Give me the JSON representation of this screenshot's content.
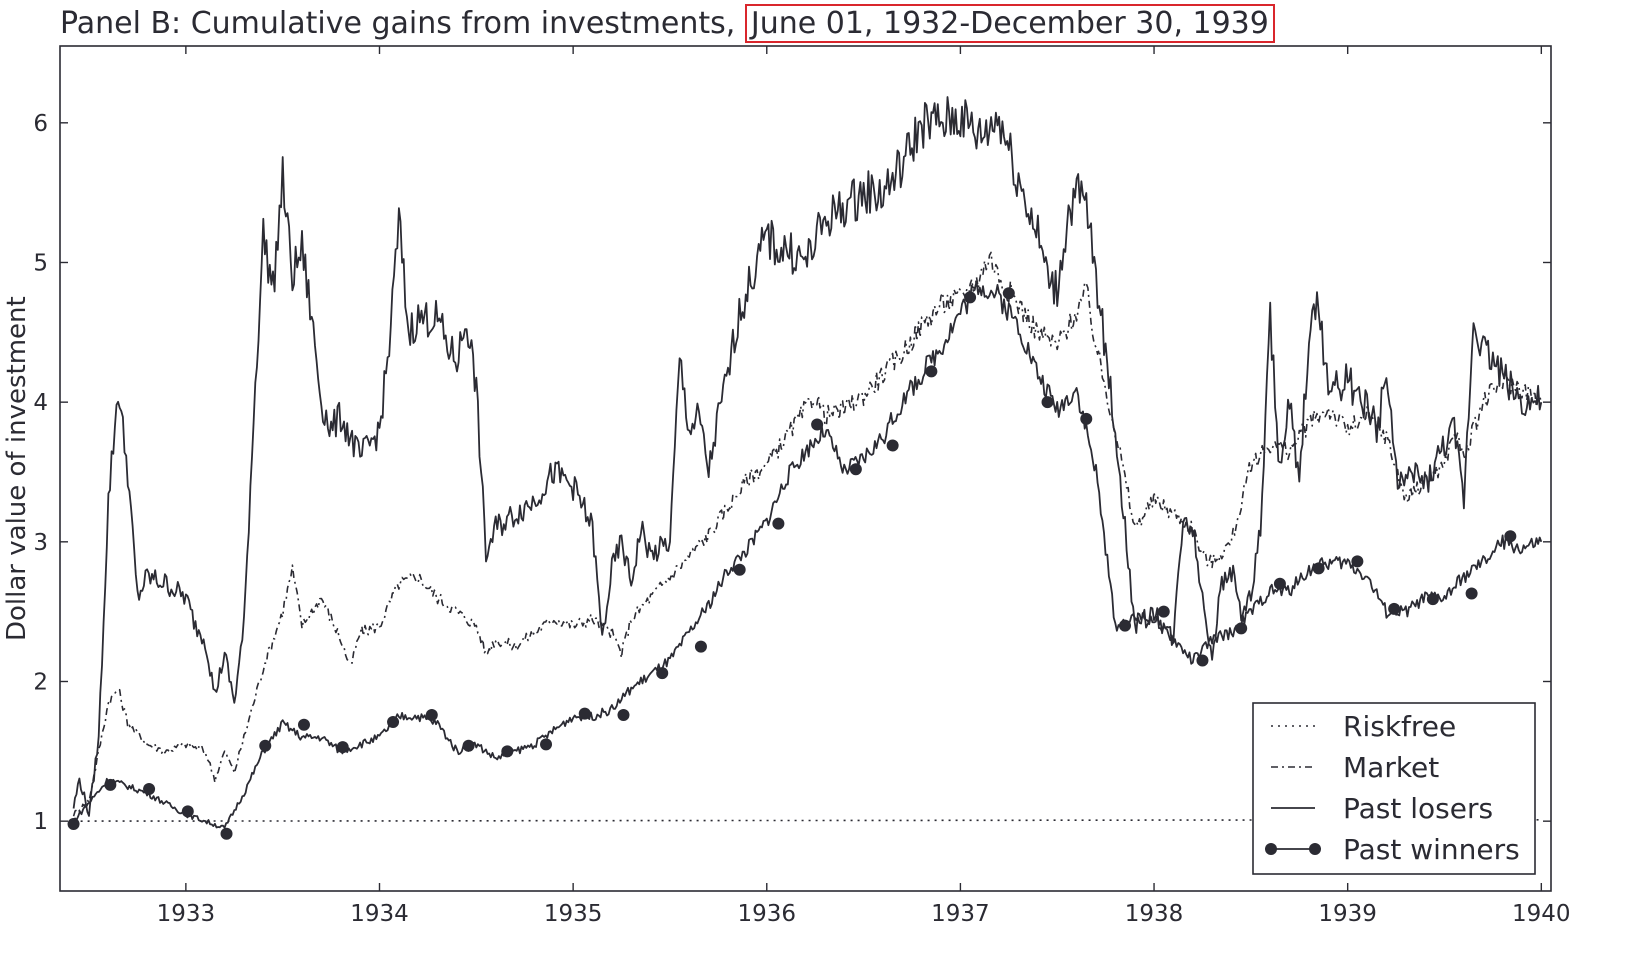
{
  "chart_data": {
    "type": "line",
    "title_prefix": "Panel B: Cumulative gains from investments,",
    "title_highlight": "June 01, 1932-December 30, 1939",
    "xlabel": "",
    "ylabel": "Dollar value of investment",
    "xlim": [
      1932.35,
      1940.05
    ],
    "ylim": [
      0.5,
      6.55
    ],
    "x_ticks": [
      1933,
      1934,
      1935,
      1936,
      1937,
      1938,
      1939,
      1940
    ],
    "y_ticks": [
      1,
      2,
      3,
      4,
      5,
      6
    ],
    "grid": false,
    "legend_position": "lower-right",
    "series": [
      {
        "name": "Riskfree",
        "style": "dotted",
        "x": [
          1932.42,
          1940.0
        ],
        "y": [
          1.0,
          1.01
        ]
      },
      {
        "name": "Market",
        "style": "dashdot",
        "x": [
          1932.42,
          1932.5,
          1932.55,
          1932.6,
          1932.65,
          1932.7,
          1932.8,
          1932.9,
          1933.0,
          1933.1,
          1933.15,
          1933.2,
          1933.25,
          1933.3,
          1933.4,
          1933.5,
          1933.55,
          1933.6,
          1933.7,
          1933.8,
          1933.85,
          1933.9,
          1934.0,
          1934.1,
          1934.2,
          1934.3,
          1934.4,
          1934.5,
          1934.55,
          1934.6,
          1934.7,
          1934.8,
          1934.9,
          1935.0,
          1935.1,
          1935.2,
          1935.25,
          1935.3,
          1935.4,
          1935.5,
          1935.6,
          1935.7,
          1935.8,
          1935.9,
          1936.0,
          1936.1,
          1936.2,
          1936.25,
          1936.3,
          1936.4,
          1936.5,
          1936.6,
          1936.7,
          1936.8,
          1936.9,
          1937.0,
          1937.1,
          1937.15,
          1937.2,
          1937.3,
          1937.4,
          1937.5,
          1937.6,
          1937.65,
          1937.7,
          1937.8,
          1937.9,
          1938.0,
          1938.1,
          1938.2,
          1938.25,
          1938.3,
          1938.4,
          1938.5,
          1938.6,
          1938.7,
          1938.8,
          1938.9,
          1939.0,
          1939.1,
          1939.2,
          1939.3,
          1939.4,
          1939.5,
          1939.55,
          1939.6,
          1939.7,
          1939.8,
          1939.9,
          1940.0
        ],
        "y": [
          1.05,
          1.15,
          1.5,
          1.85,
          1.95,
          1.7,
          1.55,
          1.5,
          1.55,
          1.5,
          1.3,
          1.5,
          1.35,
          1.6,
          2.1,
          2.5,
          2.8,
          2.4,
          2.6,
          2.3,
          2.1,
          2.35,
          2.4,
          2.7,
          2.75,
          2.6,
          2.5,
          2.4,
          2.2,
          2.3,
          2.25,
          2.35,
          2.45,
          2.4,
          2.45,
          2.35,
          2.2,
          2.45,
          2.6,
          2.75,
          2.9,
          3.05,
          3.25,
          3.45,
          3.55,
          3.75,
          3.95,
          4.05,
          3.9,
          3.95,
          4.05,
          4.2,
          4.35,
          4.55,
          4.7,
          4.75,
          4.9,
          5.05,
          4.9,
          4.7,
          4.5,
          4.4,
          4.65,
          4.8,
          4.4,
          3.8,
          3.1,
          3.3,
          3.2,
          3.1,
          2.9,
          2.85,
          3.0,
          3.55,
          3.7,
          3.65,
          3.85,
          3.95,
          3.8,
          3.9,
          3.75,
          3.3,
          3.45,
          3.55,
          3.8,
          3.6,
          4.0,
          4.15,
          4.1,
          4.0
        ]
      },
      {
        "name": "Past losers",
        "style": "solid",
        "x": [
          1932.42,
          1932.45,
          1932.5,
          1932.55,
          1932.6,
          1932.65,
          1932.7,
          1932.75,
          1932.8,
          1932.9,
          1933.0,
          1933.05,
          1933.1,
          1933.15,
          1933.2,
          1933.25,
          1933.3,
          1933.35,
          1933.4,
          1933.45,
          1933.5,
          1933.55,
          1933.6,
          1933.65,
          1933.7,
          1933.75,
          1933.8,
          1933.9,
          1934.0,
          1934.05,
          1934.1,
          1934.15,
          1934.2,
          1934.3,
          1934.35,
          1934.4,
          1934.45,
          1934.5,
          1934.55,
          1934.6,
          1934.7,
          1934.8,
          1934.9,
          1935.0,
          1935.1,
          1935.15,
          1935.2,
          1935.25,
          1935.3,
          1935.35,
          1935.4,
          1935.5,
          1935.55,
          1935.6,
          1935.65,
          1935.7,
          1935.75,
          1935.8,
          1935.85,
          1935.9,
          1936.0,
          1936.05,
          1936.1,
          1936.2,
          1936.3,
          1936.4,
          1936.5,
          1936.6,
          1936.7,
          1936.8,
          1936.9,
          1937.0,
          1937.1,
          1937.2,
          1937.3,
          1937.4,
          1937.45,
          1937.5,
          1937.55,
          1937.6,
          1937.65,
          1937.7,
          1937.8,
          1937.9,
          1938.0,
          1938.05,
          1938.1,
          1938.15,
          1938.2,
          1938.25,
          1938.3,
          1938.35,
          1938.4,
          1938.45,
          1938.5,
          1938.55,
          1938.6,
          1938.65,
          1938.7,
          1938.75,
          1938.8,
          1938.85,
          1938.9,
          1938.95,
          1939.0,
          1939.05,
          1939.1,
          1939.15,
          1939.2,
          1939.25,
          1939.3,
          1939.35,
          1939.4,
          1939.5,
          1939.55,
          1939.6,
          1939.65,
          1939.7,
          1939.8,
          1939.9,
          1940.0
        ],
        "y": [
          1.1,
          1.3,
          1.05,
          1.6,
          3.3,
          4.1,
          3.5,
          2.6,
          2.75,
          2.7,
          2.6,
          2.4,
          2.3,
          1.9,
          2.2,
          1.85,
          2.4,
          3.9,
          5.2,
          4.8,
          5.6,
          4.9,
          5.1,
          4.6,
          4.0,
          3.8,
          3.9,
          3.6,
          3.8,
          4.4,
          5.3,
          4.5,
          4.6,
          4.6,
          4.4,
          4.3,
          4.6,
          4.1,
          2.9,
          3.1,
          3.2,
          3.3,
          3.5,
          3.4,
          3.1,
          2.3,
          2.8,
          3.0,
          2.7,
          3.1,
          2.9,
          3.0,
          4.3,
          3.8,
          3.9,
          3.5,
          3.9,
          4.2,
          4.6,
          4.8,
          5.2,
          5.1,
          5.1,
          5.0,
          5.3,
          5.4,
          5.5,
          5.5,
          5.7,
          6.0,
          6.0,
          6.05,
          5.9,
          6.05,
          5.6,
          5.2,
          4.9,
          4.8,
          5.3,
          5.5,
          5.4,
          4.9,
          3.8,
          2.4,
          2.5,
          2.4,
          2.3,
          3.2,
          3.1,
          2.6,
          2.2,
          2.7,
          2.8,
          2.5,
          2.6,
          3.1,
          4.6,
          3.5,
          4.0,
          3.4,
          4.5,
          4.7,
          4.1,
          4.1,
          4.2,
          4.0,
          4.0,
          3.8,
          4.2,
          3.5,
          3.4,
          3.5,
          3.4,
          3.7,
          3.8,
          3.3,
          4.6,
          4.4,
          4.2,
          4.0,
          4.0
        ]
      },
      {
        "name": "Past winners",
        "style": "solid-marker",
        "x": [
          1932.42,
          1932.6,
          1932.8,
          1933.0,
          1933.2,
          1933.3,
          1933.4,
          1933.5,
          1933.6,
          1933.7,
          1933.8,
          1933.9,
          1934.0,
          1934.1,
          1934.2,
          1934.3,
          1934.4,
          1934.5,
          1934.6,
          1934.7,
          1934.8,
          1934.9,
          1935.0,
          1935.1,
          1935.2,
          1935.3,
          1935.4,
          1935.5,
          1935.6,
          1935.7,
          1935.8,
          1935.9,
          1936.0,
          1936.1,
          1936.2,
          1936.3,
          1936.4,
          1936.5,
          1936.6,
          1936.7,
          1936.8,
          1936.9,
          1937.0,
          1937.1,
          1937.2,
          1937.3,
          1937.4,
          1937.5,
          1937.6,
          1937.7,
          1937.8,
          1937.9,
          1938.0,
          1938.1,
          1938.2,
          1938.3,
          1938.4,
          1938.5,
          1938.6,
          1938.7,
          1938.8,
          1938.9,
          1939.0,
          1939.1,
          1939.2,
          1939.3,
          1939.4,
          1939.5,
          1939.6,
          1939.7,
          1939.8,
          1939.9,
          1940.0
        ],
        "y": [
          1.0,
          1.3,
          1.2,
          1.05,
          0.95,
          1.2,
          1.5,
          1.7,
          1.6,
          1.6,
          1.5,
          1.55,
          1.6,
          1.75,
          1.75,
          1.7,
          1.5,
          1.55,
          1.45,
          1.5,
          1.55,
          1.65,
          1.75,
          1.75,
          1.8,
          1.95,
          2.05,
          2.15,
          2.35,
          2.55,
          2.8,
          2.95,
          3.15,
          3.45,
          3.65,
          3.8,
          3.5,
          3.6,
          3.75,
          4.0,
          4.2,
          4.4,
          4.65,
          4.85,
          4.75,
          4.55,
          4.2,
          3.95,
          4.1,
          3.5,
          2.4,
          2.45,
          2.45,
          2.3,
          2.15,
          2.3,
          2.35,
          2.5,
          2.65,
          2.65,
          2.8,
          2.85,
          2.85,
          2.75,
          2.5,
          2.5,
          2.6,
          2.6,
          2.75,
          2.85,
          3.0,
          2.95,
          3.0
        ]
      }
    ],
    "markers": {
      "x": [
        1932.42,
        1932.61,
        1932.81,
        1933.01,
        1933.21,
        1933.41,
        1933.61,
        1933.81,
        1934.07,
        1934.27,
        1934.46,
        1934.66,
        1934.86,
        1935.06,
        1935.26,
        1935.46,
        1935.66,
        1935.86,
        1936.06,
        1936.26,
        1936.46,
        1936.65,
        1936.85,
        1937.05,
        1937.25,
        1937.45,
        1937.65,
        1937.85,
        1938.05,
        1938.25,
        1938.45,
        1938.65,
        1938.85,
        1939.05,
        1939.24,
        1939.44,
        1939.64,
        1939.84
      ],
      "y": [
        0.98,
        1.26,
        1.23,
        1.07,
        0.91,
        1.54,
        1.69,
        1.53,
        1.71,
        1.76,
        1.54,
        1.5,
        1.55,
        1.77,
        1.76,
        2.06,
        2.25,
        2.8,
        3.13,
        3.84,
        3.52,
        3.69,
        4.22,
        4.75,
        4.78,
        4.0,
        3.88,
        2.4,
        2.5,
        2.15,
        2.38,
        2.7,
        2.81,
        2.86,
        2.52,
        2.59,
        2.63,
        3.04
      ]
    }
  }
}
